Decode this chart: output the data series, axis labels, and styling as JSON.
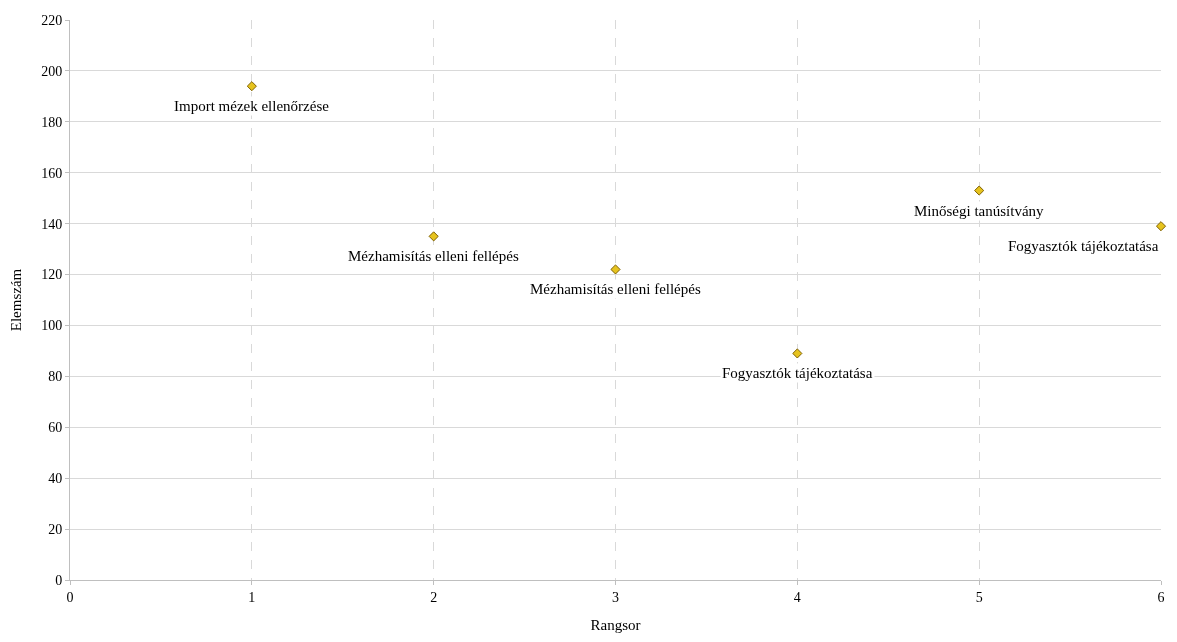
{
  "chart_data": {
    "type": "scatter",
    "xlabel": "Rangsor",
    "ylabel": "Elemszám",
    "x": [
      1,
      2,
      3,
      4,
      5,
      6
    ],
    "series": [
      {
        "color": "#e6c31e",
        "values": [
          194,
          135,
          122,
          89,
          153,
          139
        ]
      }
    ],
    "xlim": [
      0,
      6
    ],
    "xticks": [
      0,
      1,
      2,
      3,
      4,
      5,
      6
    ],
    "ylim": [
      0,
      220
    ],
    "yticks": [
      0,
      20,
      40,
      60,
      80,
      100,
      120,
      140,
      160,
      180,
      200,
      220
    ],
    "grid": true,
    "marker": "diamond",
    "annotations": [
      {
        "text": "Import mézek ellenőrzése",
        "x": 1,
        "y": 194
      },
      {
        "text": "Mézhamisítás elleni fellépés",
        "x": 2,
        "y": 135
      },
      {
        "text": "Mézhamisítás elleni fellépés",
        "x": 3,
        "y": 122
      },
      {
        "text": "Fogyasztók tájékoztatása",
        "x": 4,
        "y": 89
      },
      {
        "text": "Minőségi tanúsítvány",
        "x": 5,
        "y": 153
      },
      {
        "text": "Fogyasztók tájékoztatása",
        "x": 6,
        "y": 139
      }
    ]
  }
}
